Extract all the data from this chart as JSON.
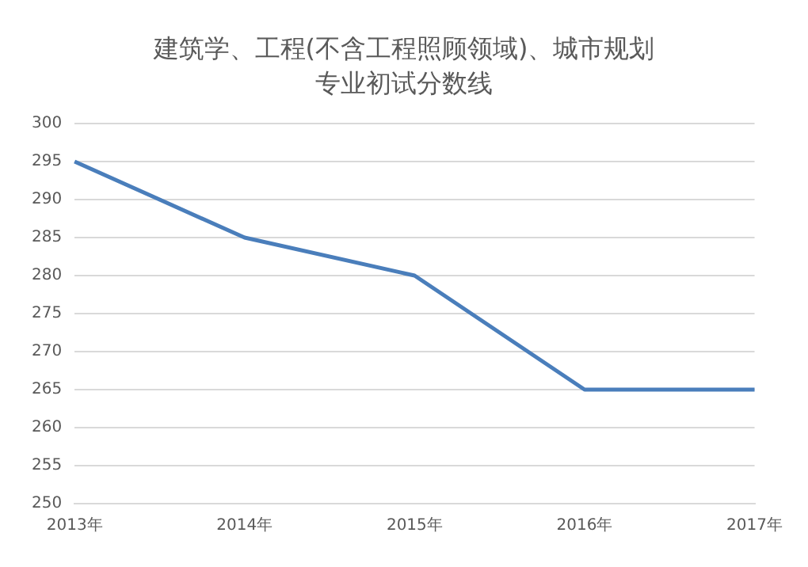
{
  "chart_data": {
    "type": "line",
    "title": "建筑学、工程(不含工程照顾领域)、城市规划专业初试分数线",
    "categories": [
      "2013年",
      "2014年",
      "2015年",
      "2016年",
      "2017年"
    ],
    "series": [
      {
        "color": "#4a7ebb",
        "values": [
          295,
          285,
          280,
          265,
          265
        ]
      }
    ],
    "ylim": [
      250,
      300
    ],
    "yticks": [
      250,
      255,
      260,
      265,
      270,
      275,
      280,
      285,
      290,
      295,
      300
    ],
    "grid": "y",
    "legend": false,
    "marker": "none"
  }
}
